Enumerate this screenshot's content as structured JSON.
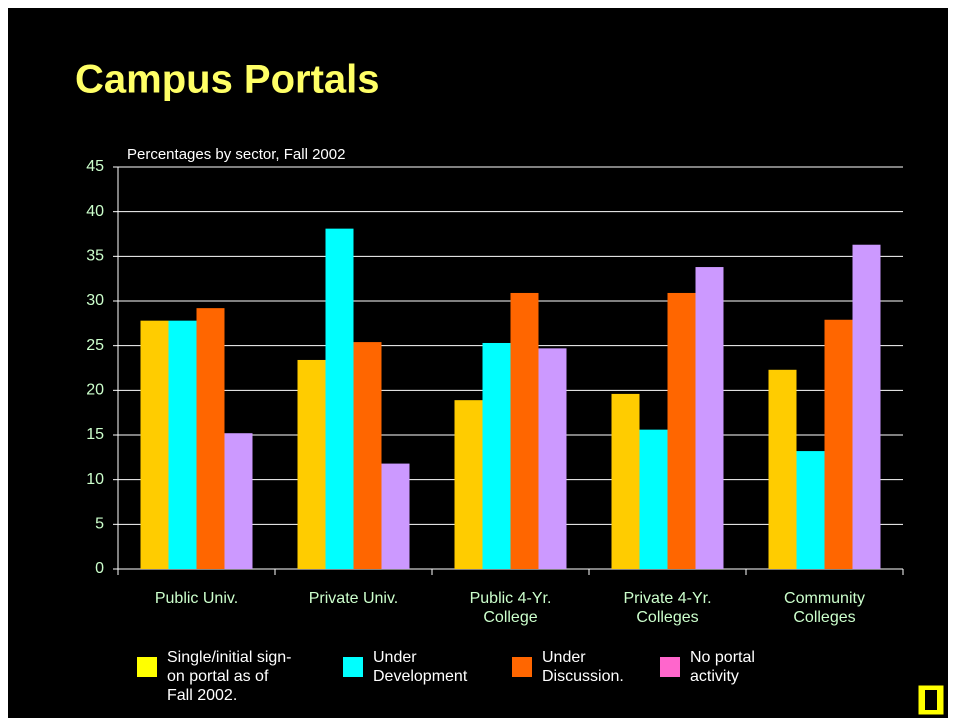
{
  "chart_data": {
    "type": "bar",
    "title": "Campus Portals",
    "subtitle": "Percentages by sector, Fall 2002",
    "categories": [
      "Public Univ.",
      "Private Univ.",
      "Public 4-Yr. College",
      "Private 4-Yr. Colleges",
      "Community Colleges"
    ],
    "series": [
      {
        "name": "Single/initial sign-on portal as of Fall 2002.",
        "color": "#ffcc00",
        "legend_color": "#ffff00",
        "values": [
          27.8,
          23.4,
          18.9,
          19.6,
          22.3
        ]
      },
      {
        "name": "Under Development",
        "color": "#00ffff",
        "legend_color": "#00ffff",
        "values": [
          27.8,
          38.1,
          25.3,
          15.6,
          13.2
        ]
      },
      {
        "name": "Under Discussion.",
        "color": "#ff6600",
        "legend_color": "#ff6600",
        "values": [
          29.2,
          25.4,
          30.9,
          30.9,
          27.9
        ]
      },
      {
        "name": "No portal activity",
        "color": "#cc99ff",
        "legend_color": "#ff66cc",
        "values": [
          15.2,
          11.8,
          24.7,
          33.8,
          36.3
        ]
      }
    ],
    "ylim": [
      0,
      45
    ],
    "yticks": [
      0,
      5,
      10,
      15,
      20,
      25,
      30,
      35,
      40,
      45
    ],
    "grid": true,
    "legend": "bottom"
  }
}
